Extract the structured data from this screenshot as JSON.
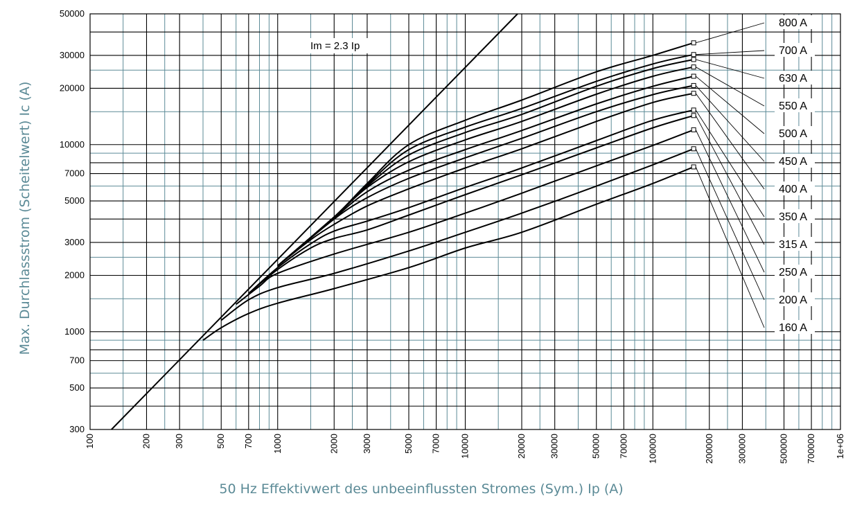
{
  "chart_data": {
    "type": "line",
    "title": "",
    "xlabel": "50 Hz Effektivwert des unbeeinflussten Stromes (Sym.) Ip (A)",
    "ylabel": "Max. Durchlassstrom (Scheitelwert) Ic (A)",
    "xscale": "log",
    "yscale": "log",
    "xlim": [
      100,
      1000000
    ],
    "ylim": [
      300,
      50000
    ],
    "grid": true,
    "colors": {
      "major_grid": "#000000",
      "minor_grid": "#5b8a96",
      "curve": "#000000",
      "label": "#5b8a96"
    },
    "x_ticks": [
      {
        "value": 100,
        "label": "100"
      },
      {
        "value": 200,
        "label": "200"
      },
      {
        "value": 300,
        "label": "300"
      },
      {
        "value": 500,
        "label": "500"
      },
      {
        "value": 700,
        "label": "700"
      },
      {
        "value": 1000,
        "label": "1000"
      },
      {
        "value": 2000,
        "label": "2000"
      },
      {
        "value": 3000,
        "label": "3000"
      },
      {
        "value": 5000,
        "label": "5000"
      },
      {
        "value": 7000,
        "label": "7000"
      },
      {
        "value": 10000,
        "label": "10000"
      },
      {
        "value": 20000,
        "label": "20000"
      },
      {
        "value": 30000,
        "label": "30000"
      },
      {
        "value": 50000,
        "label": "50000"
      },
      {
        "value": 70000,
        "label": "70000"
      },
      {
        "value": 100000,
        "label": "100000"
      },
      {
        "value": 200000,
        "label": "200000"
      },
      {
        "value": 300000,
        "label": "300000"
      },
      {
        "value": 500000,
        "label": "500000"
      },
      {
        "value": 700000,
        "label": "700000"
      },
      {
        "value": 1000000,
        "label": "1e+06"
      }
    ],
    "y_ticks": [
      {
        "value": 300,
        "label": "300"
      },
      {
        "value": 500,
        "label": "500"
      },
      {
        "value": 700,
        "label": "700"
      },
      {
        "value": 1000,
        "label": "1000"
      },
      {
        "value": 2000,
        "label": "2000"
      },
      {
        "value": 3000,
        "label": "3000"
      },
      {
        "value": 5000,
        "label": "5000"
      },
      {
        "value": 7000,
        "label": "7000"
      },
      {
        "value": 10000,
        "label": "10000"
      },
      {
        "value": 20000,
        "label": "20000"
      },
      {
        "value": 30000,
        "label": "30000"
      },
      {
        "value": 50000,
        "label": "50000"
      }
    ],
    "reference_line": {
      "label": "Im = 2.3 Ip",
      "points": [
        [
          130,
          300
        ],
        [
          19000,
          50000
        ]
      ]
    },
    "series": [
      {
        "name": "160 A",
        "points": [
          [
            400,
            900
          ],
          [
            500,
            1050
          ],
          [
            700,
            1250
          ],
          [
            1000,
            1420
          ],
          [
            2000,
            1700
          ],
          [
            5000,
            2200
          ],
          [
            10000,
            2800
          ],
          [
            20000,
            3400
          ],
          [
            50000,
            4800
          ],
          [
            100000,
            6200
          ],
          [
            165000,
            7600
          ]
        ]
      },
      {
        "name": "200 A",
        "points": [
          [
            500,
            1150
          ],
          [
            700,
            1480
          ],
          [
            1000,
            1720
          ],
          [
            2000,
            2050
          ],
          [
            5000,
            2700
          ],
          [
            10000,
            3400
          ],
          [
            20000,
            4300
          ],
          [
            50000,
            6000
          ],
          [
            100000,
            7800
          ],
          [
            165000,
            9500
          ]
        ]
      },
      {
        "name": "250 A",
        "points": [
          [
            600,
            1400
          ],
          [
            800,
            1750
          ],
          [
            1000,
            2050
          ],
          [
            2000,
            2600
          ],
          [
            5000,
            3400
          ],
          [
            10000,
            4300
          ],
          [
            20000,
            5500
          ],
          [
            50000,
            7700
          ],
          [
            100000,
            9900
          ],
          [
            165000,
            12000
          ]
        ]
      },
      {
        "name": "315 A",
        "points": [
          [
            700,
            1600
          ],
          [
            1000,
            2150
          ],
          [
            1500,
            2800
          ],
          [
            2000,
            3150
          ],
          [
            3000,
            3500
          ],
          [
            5000,
            4200
          ],
          [
            10000,
            5400
          ],
          [
            20000,
            6900
          ],
          [
            50000,
            9600
          ],
          [
            100000,
            12300
          ],
          [
            165000,
            14300
          ]
        ]
      },
      {
        "name": "350 A",
        "points": [
          [
            700,
            1600
          ],
          [
            1000,
            2200
          ],
          [
            1500,
            2950
          ],
          [
            2000,
            3450
          ],
          [
            3000,
            3900
          ],
          [
            5000,
            4600
          ],
          [
            10000,
            5900
          ],
          [
            20000,
            7500
          ],
          [
            50000,
            10500
          ],
          [
            100000,
            13500
          ],
          [
            165000,
            15300
          ]
        ]
      },
      {
        "name": "400 A",
        "points": [
          [
            1000,
            2250
          ],
          [
            1500,
            3100
          ],
          [
            2000,
            3750
          ],
          [
            3000,
            4700
          ],
          [
            5000,
            5800
          ],
          [
            10000,
            7500
          ],
          [
            20000,
            9500
          ],
          [
            50000,
            13300
          ],
          [
            100000,
            16800
          ],
          [
            165000,
            18800
          ]
        ]
      },
      {
        "name": "450 A",
        "points": [
          [
            1000,
            2250
          ],
          [
            2000,
            4000
          ],
          [
            3000,
            5200
          ],
          [
            5000,
            6600
          ],
          [
            10000,
            8500
          ],
          [
            20000,
            10800
          ],
          [
            50000,
            15000
          ],
          [
            100000,
            18500
          ],
          [
            165000,
            20700
          ]
        ]
      },
      {
        "name": "500 A",
        "points": [
          [
            1000,
            2250
          ],
          [
            2000,
            4050
          ],
          [
            3000,
            5600
          ],
          [
            5000,
            7300
          ],
          [
            10000,
            9400
          ],
          [
            20000,
            11900
          ],
          [
            50000,
            16500
          ],
          [
            100000,
            20500
          ],
          [
            165000,
            23200
          ]
        ]
      },
      {
        "name": "550 A",
        "points": [
          [
            1000,
            2250
          ],
          [
            2000,
            4100
          ],
          [
            3000,
            5900
          ],
          [
            5000,
            8100
          ],
          [
            10000,
            10600
          ],
          [
            20000,
            13300
          ],
          [
            50000,
            18600
          ],
          [
            100000,
            23200
          ],
          [
            165000,
            26000
          ]
        ]
      },
      {
        "name": "630 A",
        "points": [
          [
            1000,
            2250
          ],
          [
            2000,
            4100
          ],
          [
            3000,
            6000
          ],
          [
            5000,
            8800
          ],
          [
            10000,
            11600
          ],
          [
            20000,
            14500
          ],
          [
            50000,
            20500
          ],
          [
            100000,
            25500
          ],
          [
            165000,
            28500
          ]
        ]
      },
      {
        "name": "700 A",
        "points": [
          [
            1000,
            2250
          ],
          [
            2000,
            4100
          ],
          [
            3000,
            6100
          ],
          [
            5000,
            9400
          ],
          [
            10000,
            12400
          ],
          [
            20000,
            15600
          ],
          [
            50000,
            21800
          ],
          [
            100000,
            27000
          ],
          [
            165000,
            30300
          ]
        ]
      },
      {
        "name": "800 A",
        "points": [
          [
            1000,
            2250
          ],
          [
            2000,
            4100
          ],
          [
            3000,
            6200
          ],
          [
            5000,
            10000
          ],
          [
            10000,
            13500
          ],
          [
            20000,
            17300
          ],
          [
            50000,
            24500
          ],
          [
            100000,
            30000
          ],
          [
            165000,
            35000
          ]
        ]
      }
    ]
  }
}
